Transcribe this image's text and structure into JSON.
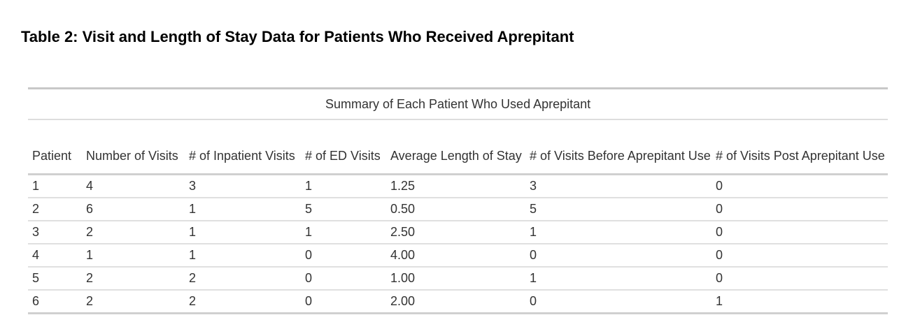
{
  "title": "Table 2: Visit and Length of Stay Data for Patients Who Received Aprepitant",
  "table": {
    "caption": "Summary of Each Patient Who Used Aprepitant",
    "headers": [
      "Patient",
      "Number of Visits",
      "# of Inpatient Visits",
      "# of ED Visits",
      "Average Length of Stay",
      "# of Visits Before Aprepitant Use",
      "# of Visits Post Aprepitant Use"
    ],
    "rows": [
      [
        "1",
        "4",
        "3",
        "1",
        "1.25",
        "3",
        "0"
      ],
      [
        "2",
        "6",
        "1",
        "5",
        "0.50",
        "5",
        "0"
      ],
      [
        "3",
        "2",
        "1",
        "1",
        "2.50",
        "1",
        "0"
      ],
      [
        "4",
        "1",
        "1",
        "0",
        "4.00",
        "0",
        "0"
      ],
      [
        "5",
        "2",
        "2",
        "0",
        "1.00",
        "1",
        "0"
      ],
      [
        "6",
        "2",
        "2",
        "0",
        "2.00",
        "0",
        "1"
      ]
    ]
  }
}
